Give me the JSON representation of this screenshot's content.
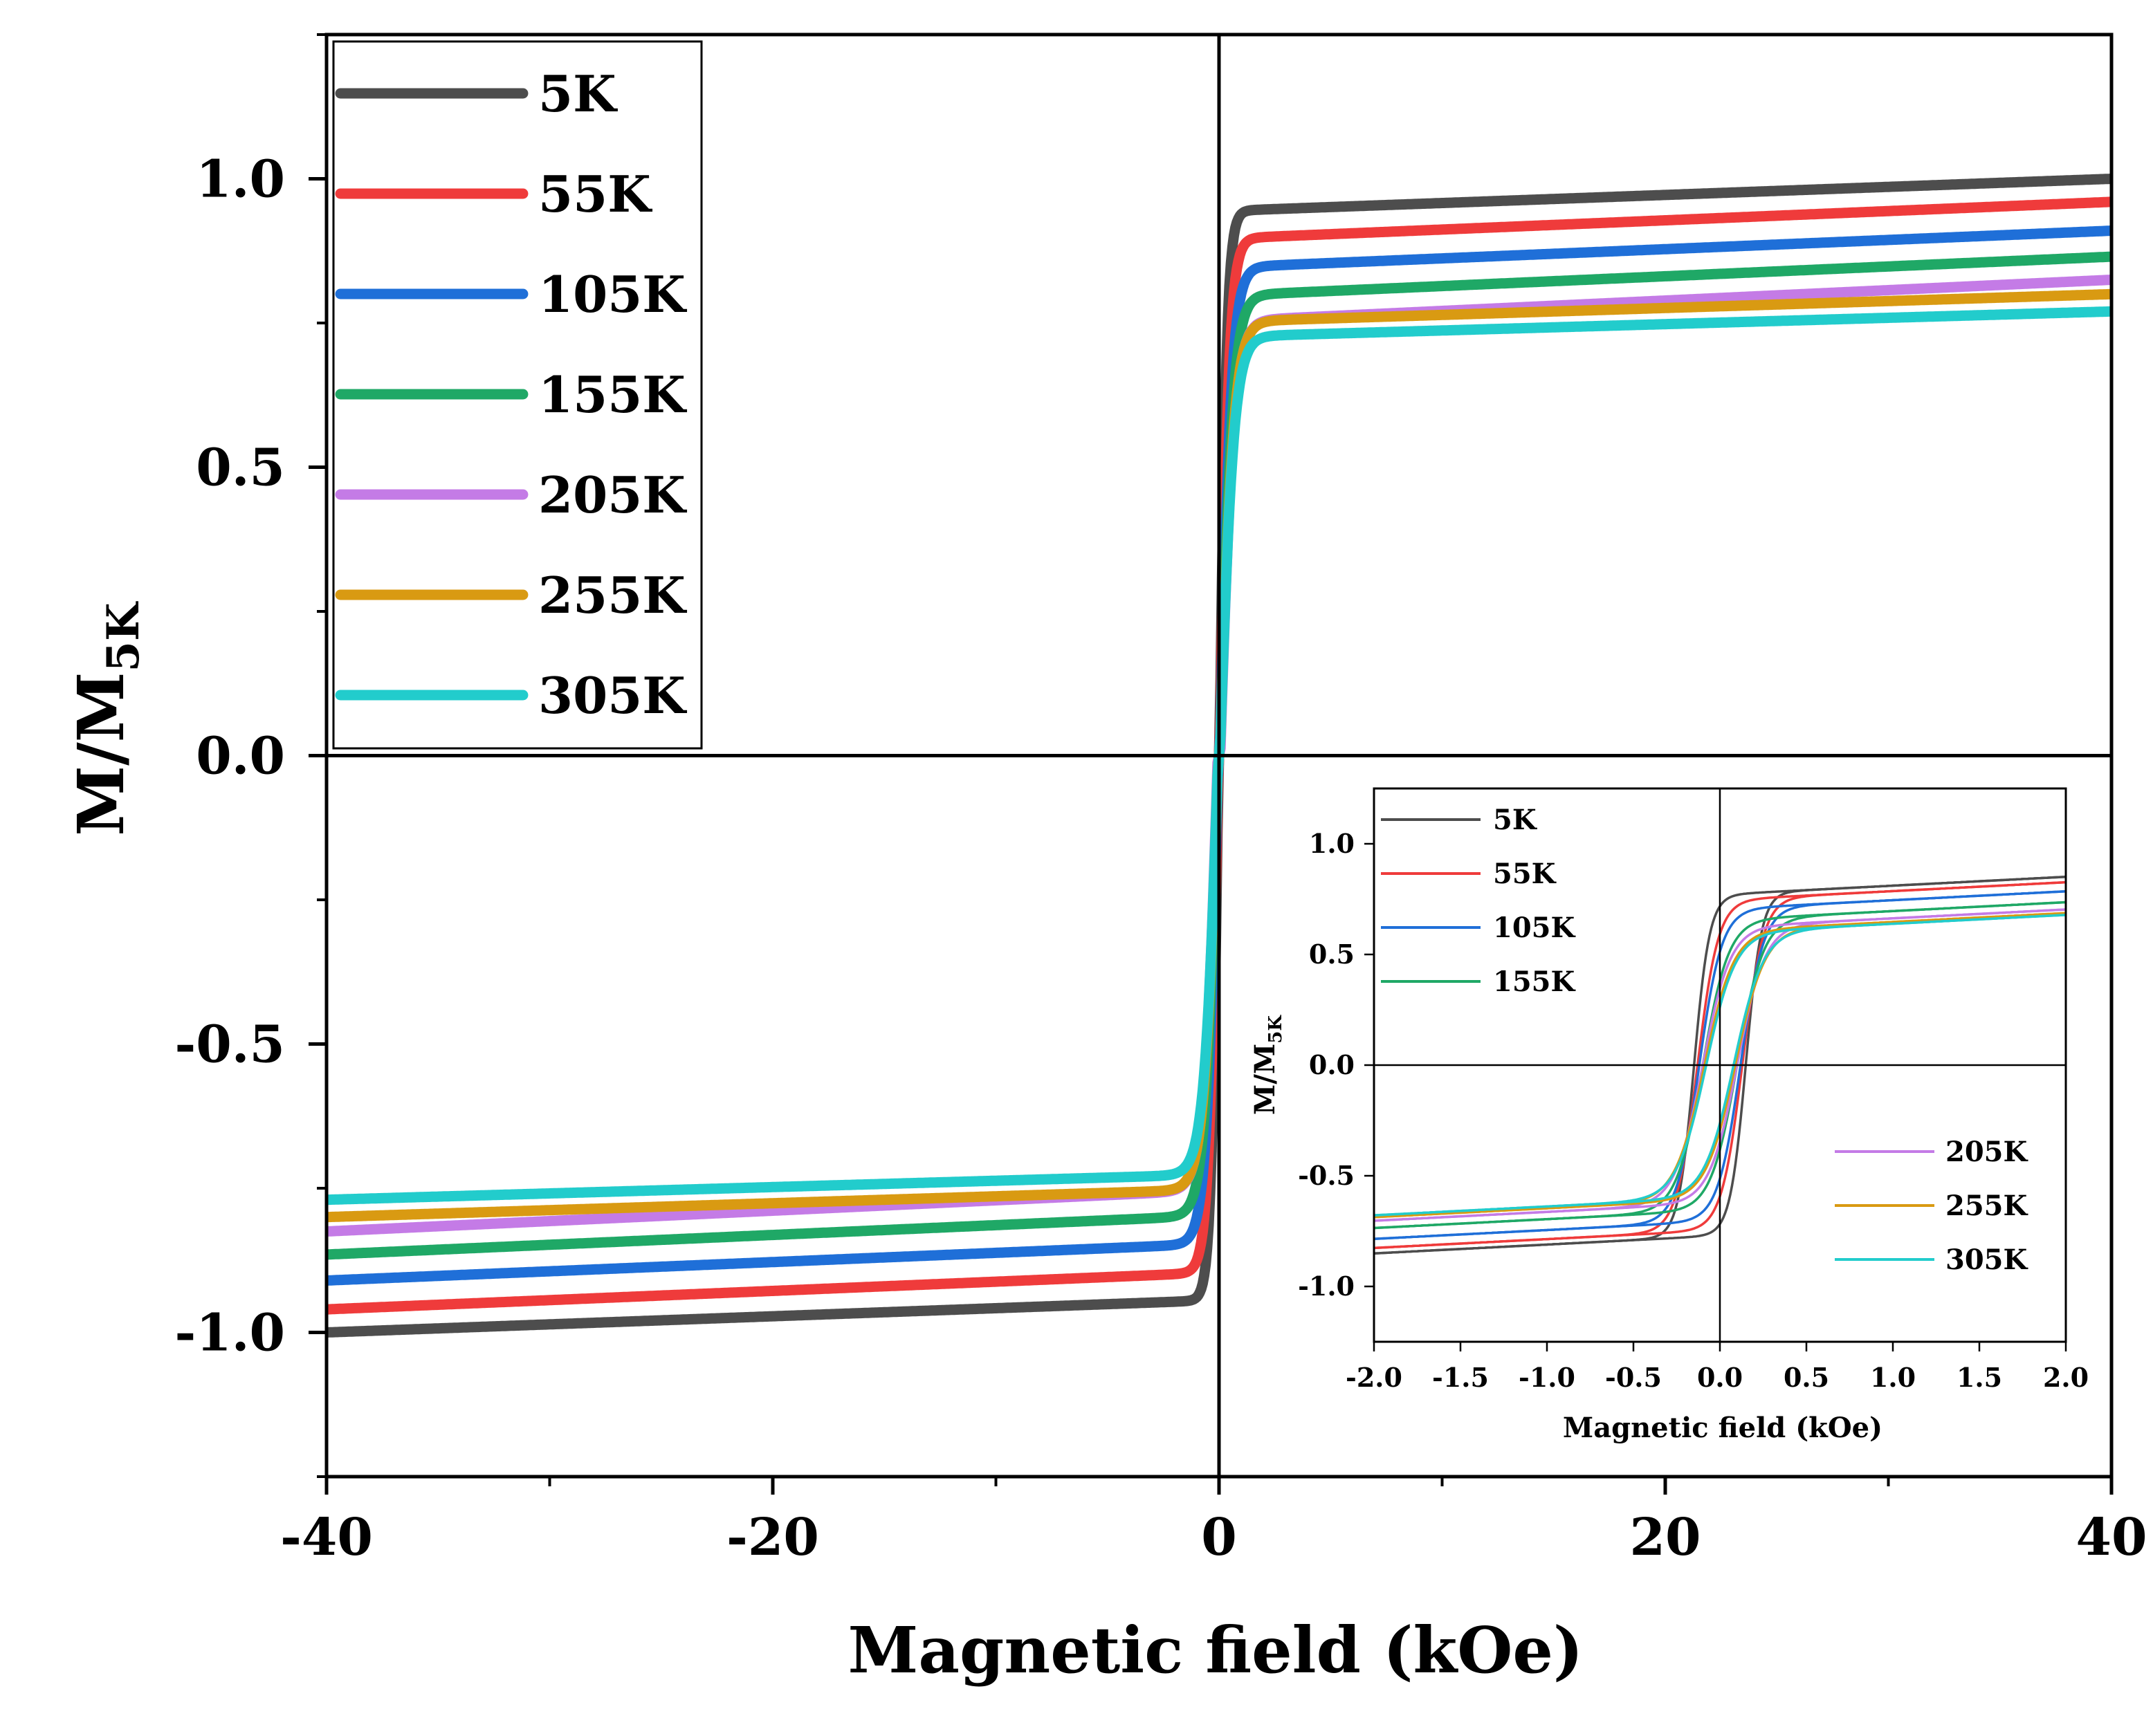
{
  "chart_data": [
    {
      "type": "line",
      "title": "",
      "xlabel": "Magnetic field (kOe)",
      "ylabel": {
        "main": "M/M",
        "subscript": "5K"
      },
      "xlim": [
        -40,
        40
      ],
      "ylim": [
        -1.25,
        1.25
      ],
      "xticks": [
        -40,
        -20,
        0,
        20,
        40
      ],
      "xtick_labels": [
        "-40",
        "-20",
        "0",
        "20",
        "40"
      ],
      "yticks": [
        -1.0,
        -0.5,
        0.0,
        0.5,
        1.0
      ],
      "ytick_labels": [
        "-1.0",
        "-0.5",
        "0.0",
        "0.5",
        "1.0"
      ],
      "legend_position": "top-left",
      "series": [
        {
          "name": "5K",
          "color": "#4d4d4d",
          "ms": 1.0,
          "slope": 0.0014,
          "hk": 0.35
        },
        {
          "name": "55K",
          "color": "#ef3b3b",
          "ms": 0.96,
          "slope": 0.0016,
          "hk": 0.45
        },
        {
          "name": "105K",
          "color": "#1f6fd8",
          "ms": 0.91,
          "slope": 0.0016,
          "hk": 0.55
        },
        {
          "name": "155K",
          "color": "#1fa866",
          "ms": 0.865,
          "slope": 0.0017,
          "hk": 0.6
        },
        {
          "name": "205K",
          "color": "#c47be6",
          "ms": 0.825,
          "slope": 0.0018,
          "hk": 0.65
        },
        {
          "name": "255K",
          "color": "#d99a12",
          "ms": 0.8,
          "slope": 0.0012,
          "hk": 0.65
        },
        {
          "name": "305K",
          "color": "#22cccc",
          "ms": 0.77,
          "slope": 0.0011,
          "hk": 0.65
        }
      ]
    },
    {
      "type": "line",
      "title": "",
      "inset": true,
      "xlabel": "Magnetic field (kOe)",
      "ylabel": {
        "main": "M/M",
        "subscript": "5K"
      },
      "xlim": [
        -2.0,
        2.0
      ],
      "ylim": [
        -1.25,
        1.25
      ],
      "xticks": [
        -2.0,
        -1.5,
        -1.0,
        -0.5,
        0.0,
        0.5,
        1.0,
        1.5,
        2.0
      ],
      "xtick_labels": [
        "-2.0",
        "-1.5",
        "-1.0",
        "-0.5",
        "0.0",
        "0.5",
        "1.0",
        "1.5",
        "2.0"
      ],
      "yticks": [
        -1.0,
        -0.5,
        0.0,
        0.5,
        1.0
      ],
      "ytick_labels": [
        "-1.0",
        "-0.5",
        "0.0",
        "0.5",
        "1.0"
      ],
      "legend": {
        "top_left": [
          "5K",
          "55K",
          "105K",
          "155K"
        ],
        "bottom_right": [
          "205K",
          "255K",
          "305K"
        ]
      },
      "series": [
        {
          "name": "5K",
          "color": "#4d4d4d",
          "hc": 0.15,
          "ms": 0.94,
          "mr": 0.55,
          "w": 0.09
        },
        {
          "name": "55K",
          "color": "#ef3b3b",
          "hc": 0.13,
          "ms": 0.91,
          "mr": 0.45,
          "w": 0.12
        },
        {
          "name": "105K",
          "color": "#1f6fd8",
          "hc": 0.12,
          "ms": 0.86,
          "mr": 0.42,
          "w": 0.13
        },
        {
          "name": "155K",
          "color": "#1fa866",
          "hc": 0.1,
          "ms": 0.8,
          "mr": 0.35,
          "w": 0.15
        },
        {
          "name": "205K",
          "color": "#c47be6",
          "hc": 0.1,
          "ms": 0.76,
          "mr": 0.33,
          "w": 0.16
        },
        {
          "name": "255K",
          "color": "#d99a12",
          "hc": 0.09,
          "ms": 0.74,
          "mr": 0.3,
          "w": 0.17
        },
        {
          "name": "305K",
          "color": "#22cccc",
          "hc": 0.08,
          "ms": 0.73,
          "mr": 0.28,
          "w": 0.17
        }
      ]
    }
  ]
}
